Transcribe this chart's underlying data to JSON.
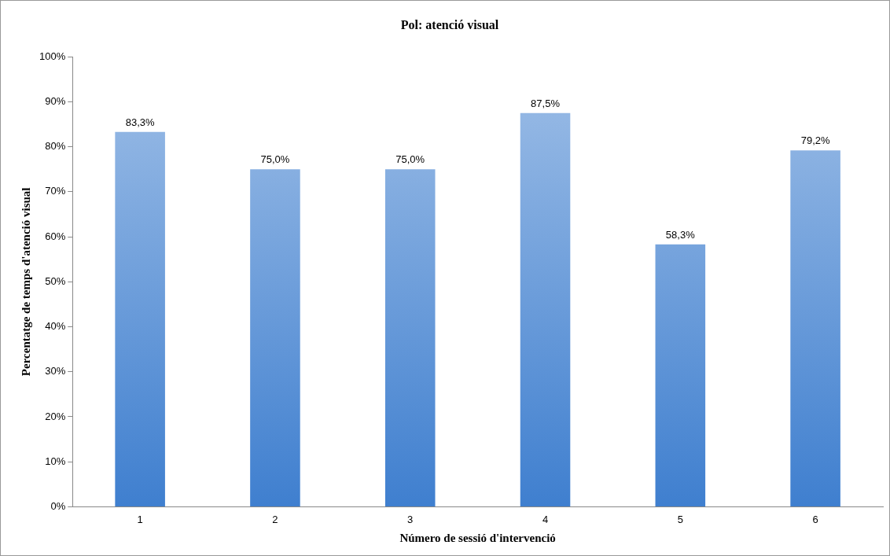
{
  "chart_data": {
    "type": "bar",
    "title": "Pol: atenció visual",
    "xlabel": "Número de sessió d'intervenció",
    "ylabel": "Percentatge de temps d'atenció visual",
    "categories": [
      "1",
      "2",
      "3",
      "4",
      "5",
      "6"
    ],
    "values": [
      83.3,
      75.0,
      75.0,
      87.5,
      58.3,
      79.2
    ],
    "value_labels": [
      "83,3%",
      "75,0%",
      "75,0%",
      "87,5%",
      "58,3%",
      "79,2%"
    ],
    "color": "#3f7fcf",
    "ylim": [
      0,
      100
    ],
    "yticks": [
      {
        "value": 0,
        "label": "0%"
      },
      {
        "value": 10,
        "label": "10%"
      },
      {
        "value": 20,
        "label": "20%"
      },
      {
        "value": 30,
        "label": "30%"
      },
      {
        "value": 40,
        "label": "40%"
      },
      {
        "value": 50,
        "label": "50%"
      },
      {
        "value": 60,
        "label": "60%"
      },
      {
        "value": 70,
        "label": "70%"
      },
      {
        "value": 80,
        "label": "80%"
      },
      {
        "value": 90,
        "label": "90%"
      },
      {
        "value": 100,
        "label": "100%"
      }
    ],
    "grid": false,
    "legend": false
  }
}
